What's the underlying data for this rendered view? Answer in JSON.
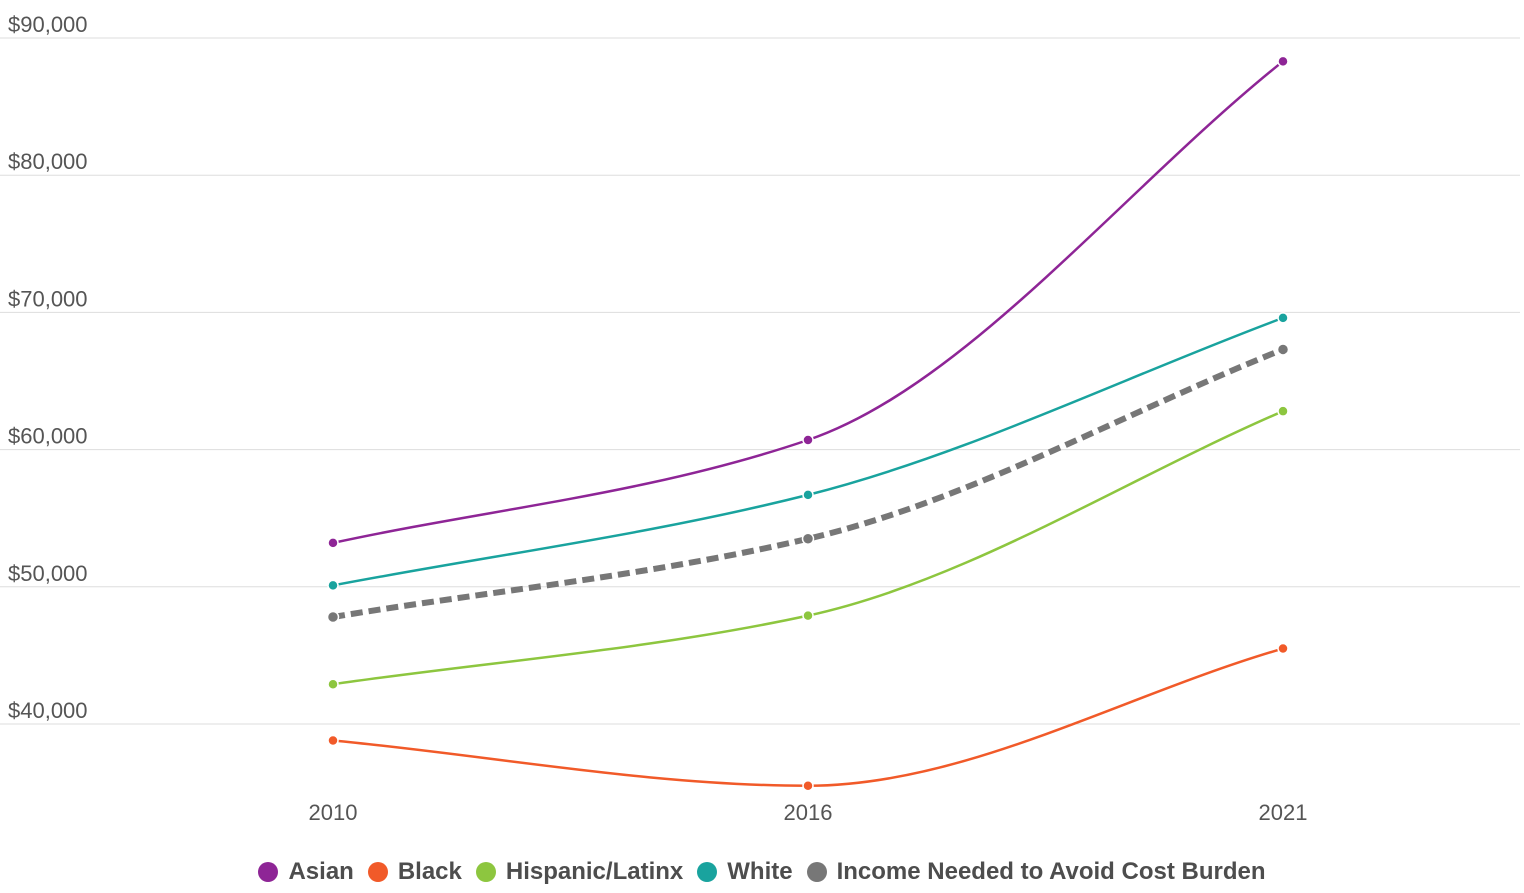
{
  "chart_data": {
    "type": "line",
    "x": [
      "2010",
      "2016",
      "2021"
    ],
    "ylim": [
      35000,
      90000
    ],
    "yticks": [
      40000,
      50000,
      60000,
      70000,
      80000,
      90000
    ],
    "ytick_labels": [
      "$40,000",
      "$50,000",
      "$60,000",
      "$70,000",
      "$80,000",
      "$90,000"
    ],
    "grid": true,
    "legend_position": "bottom",
    "series": [
      {
        "name": "Asian",
        "color": "#8e2596",
        "dashed": false,
        "values": [
          53200,
          60700,
          88300
        ]
      },
      {
        "name": "Black",
        "color": "#f15a29",
        "dashed": false,
        "values": [
          38800,
          35500,
          45500
        ]
      },
      {
        "name": "Hispanic/Latinx",
        "color": "#8dc63f",
        "dashed": false,
        "values": [
          42900,
          47900,
          62800
        ]
      },
      {
        "name": "White",
        "color": "#19a39e",
        "dashed": false,
        "values": [
          50100,
          56700,
          69600
        ]
      },
      {
        "name": "Income Needed to Avoid Cost Burden",
        "color": "#777777",
        "dashed": true,
        "values": [
          47800,
          53500,
          67300
        ]
      }
    ]
  }
}
